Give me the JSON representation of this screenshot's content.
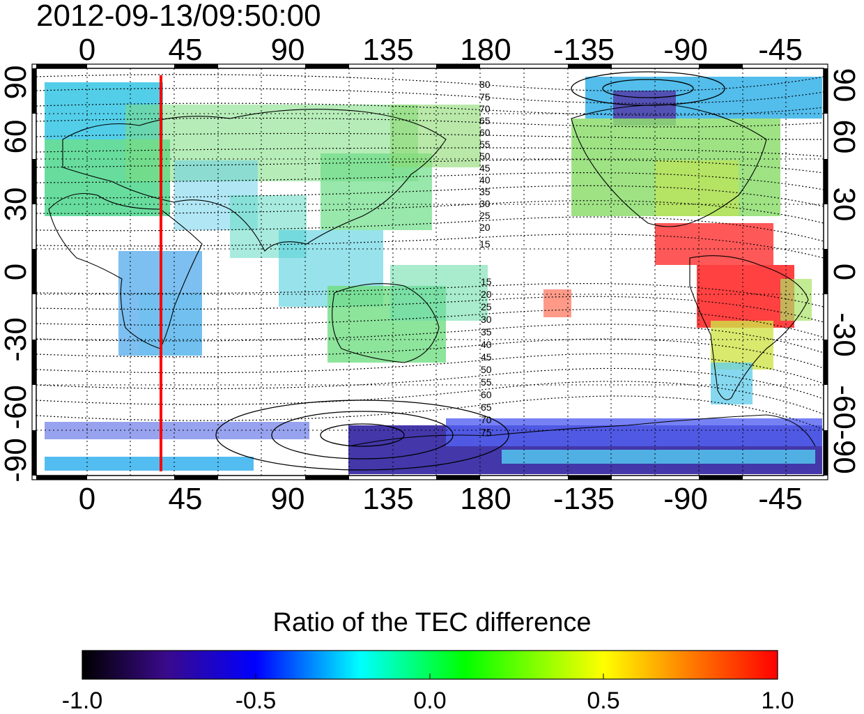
{
  "title": "2012-09-13/09:50:00",
  "map": {
    "top_lon_labels": [
      "0",
      "45",
      "90",
      "135",
      "180",
      "-135",
      "-90",
      "-45"
    ],
    "bottom_lon_labels": [
      "0",
      "45",
      "90",
      "135",
      "180",
      "-135",
      "-90",
      "-45"
    ],
    "left_lat_labels": [
      "90",
      "60",
      "30",
      "0",
      "-30",
      "-60",
      "-90"
    ],
    "right_lat_labels": [
      "90",
      "60",
      "30",
      "0",
      "-30",
      "-60",
      "-90"
    ],
    "north_contour_labels": [
      "80",
      "75",
      "70",
      "65",
      "60",
      "55",
      "50",
      "45",
      "40",
      "35",
      "30",
      "25",
      "20",
      "15"
    ],
    "south_contour_labels": [
      "15",
      "20",
      "25",
      "30",
      "35",
      "40",
      "45",
      "50",
      "55",
      "60",
      "65",
      "70",
      "75"
    ],
    "red_meridian_lon": 36,
    "colors": {
      "red_line": "#ff0000",
      "border": "#000000"
    }
  },
  "colorbar": {
    "title": "Ratio of the TEC difference",
    "tick_labels": [
      "-1.0",
      "-0.5",
      "0.0",
      "0.5",
      "1.0"
    ],
    "range": [
      -1.0,
      1.0
    ],
    "colormap": [
      "#000000",
      "#3a0a8a",
      "#0000ff",
      "#00ffff",
      "#00ff00",
      "#ffff00",
      "#ff8000",
      "#ff0000"
    ]
  }
}
